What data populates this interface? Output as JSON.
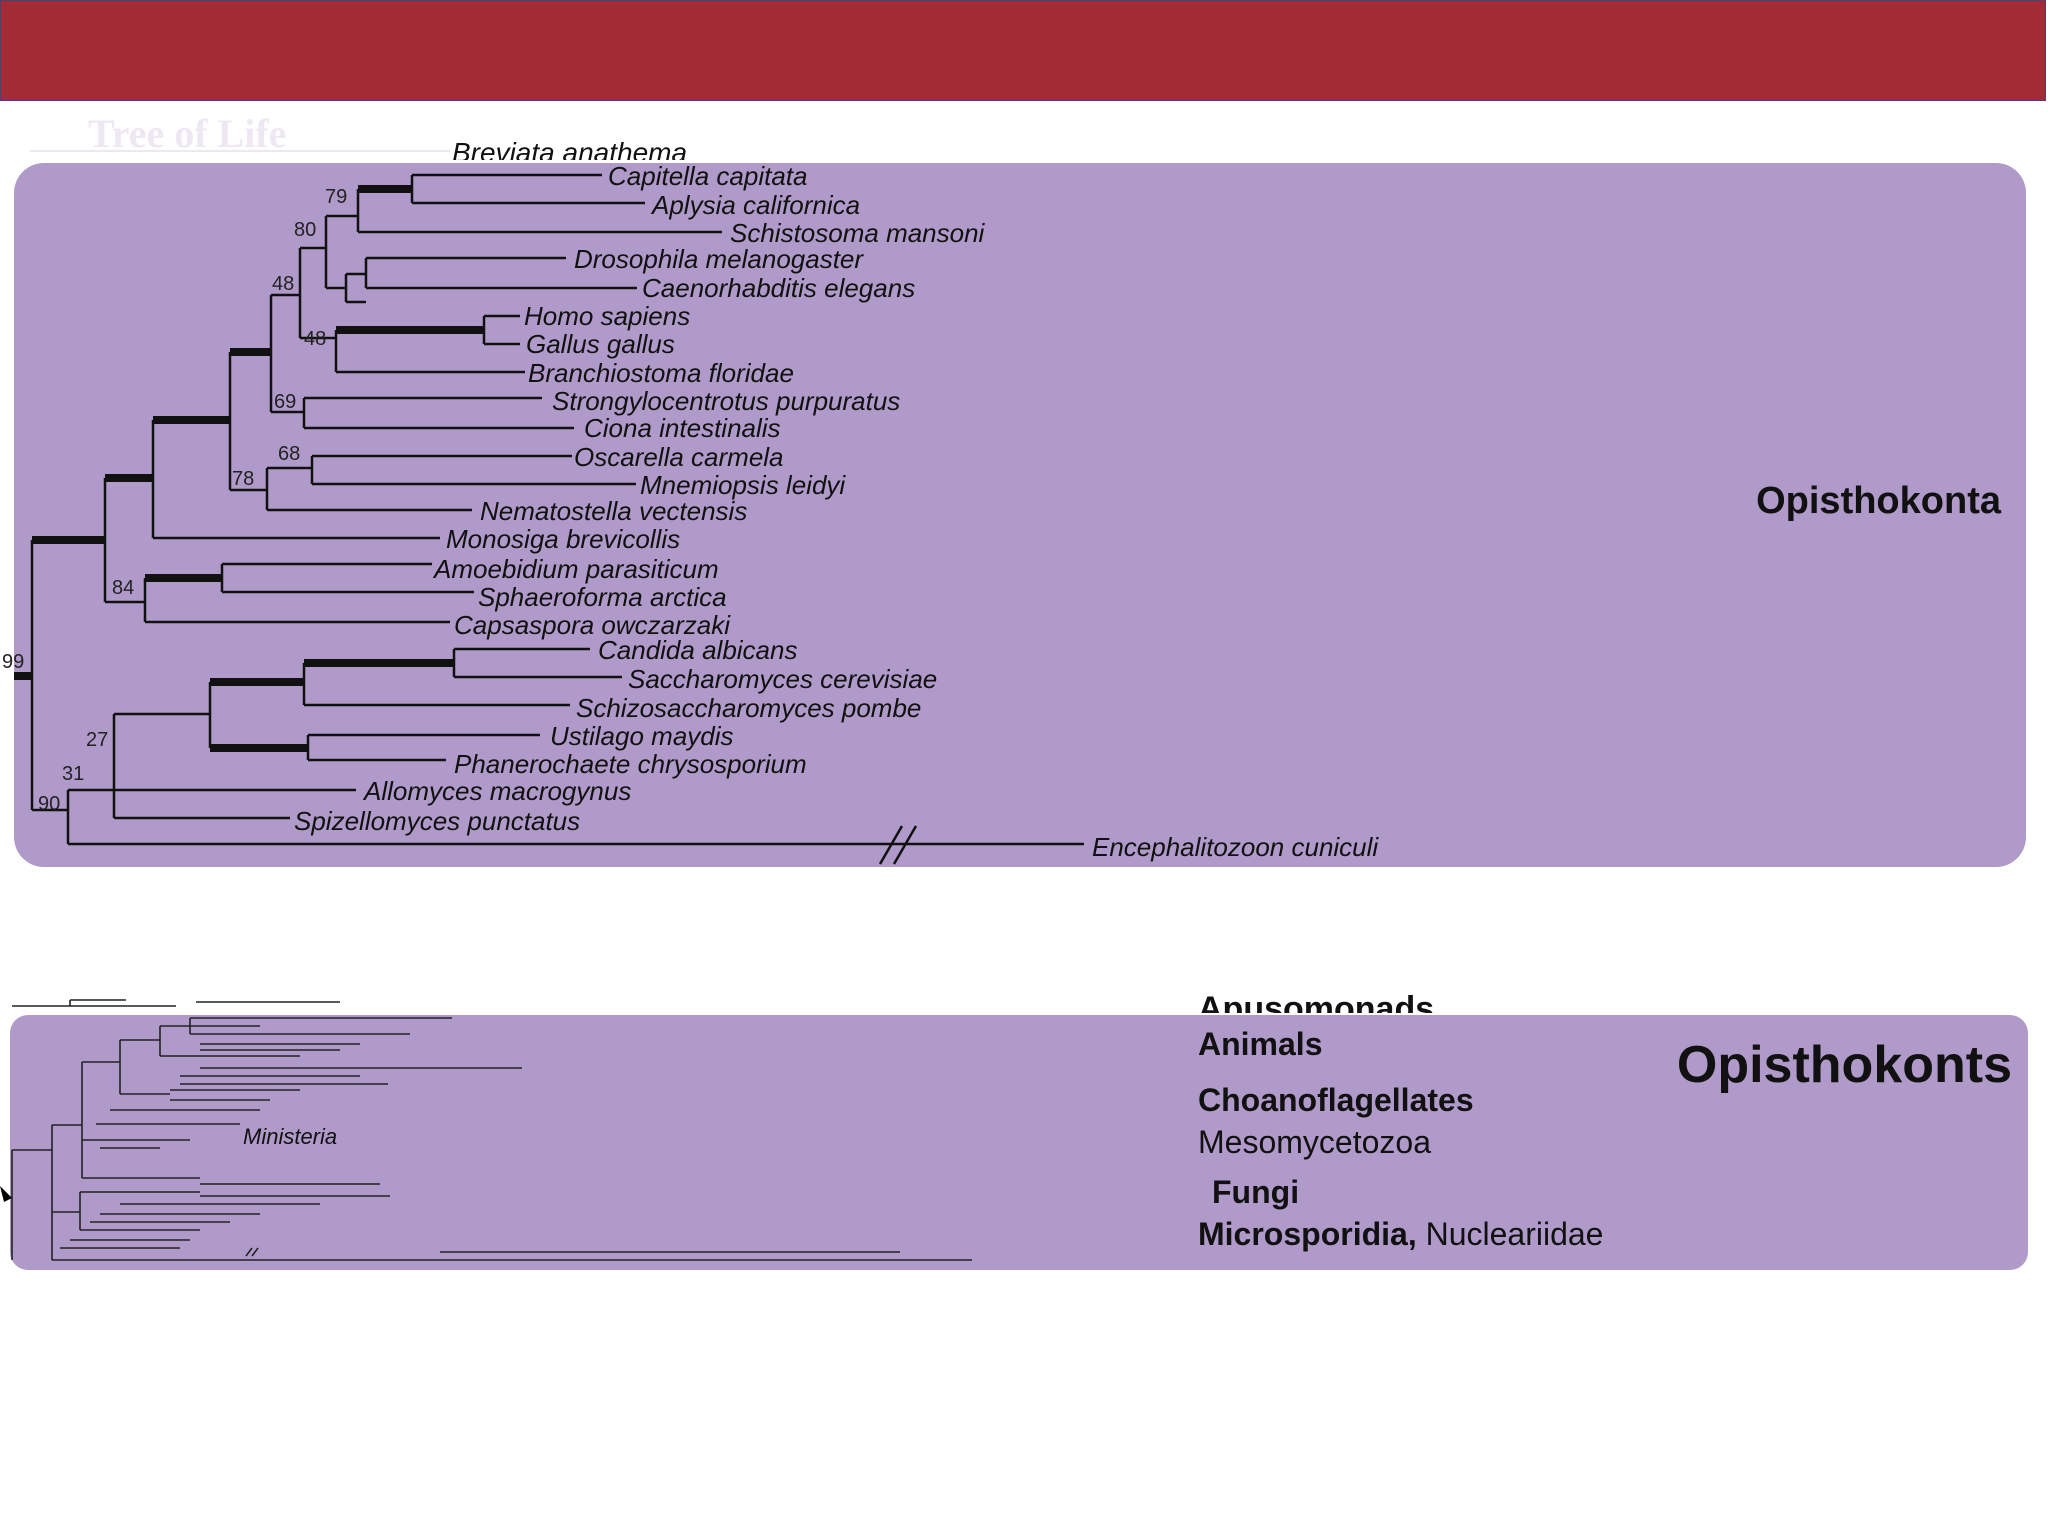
{
  "slide": {
    "faded_title": "Tree of Life",
    "cut_top_taxon": "Breviata anathema",
    "cut_bottom_label": "Apusomonads"
  },
  "top_panel": {
    "group_label": "Opisthokonta",
    "taxa": [
      "Capitella capitata",
      "Aplysia californica",
      "Schistosoma mansoni",
      "Drosophila melanogaster",
      "Caenorhabditis elegans",
      "Homo sapiens",
      "Gallus gallus",
      "Branchiostoma floridae",
      "Strongylocentrotus purpuratus",
      "Ciona intestinalis",
      "Oscarella carmela",
      "Mnemiopsis leidyi",
      "Nematostella vectensis",
      "Monosiga brevicollis",
      "Amoebidium parasiticum",
      "Sphaeroforma arctica",
      "Capsaspora owczarzaki",
      "Candida albicans",
      "Saccharomyces cerevisiae",
      "Schizosaccharomyces pombe",
      "Ustilago maydis",
      "Phanerochaete chrysosporium",
      "Allomyces macrogynus",
      "Spizellomyces punctatus",
      "Encephalitozoon cuniculi"
    ],
    "support_values": [
      "79",
      "80",
      "48",
      "48",
      "69",
      "68",
      "78",
      "84",
      "99",
      "27",
      "31",
      "90"
    ]
  },
  "bottom_panel": {
    "group_label": "Opisthokonts",
    "inner_label": "Ministeria",
    "groups": {
      "animals": "Animals",
      "choanoflagellates": "Choanoflagellates",
      "mesomycetozoa": "Mesomycetozoa",
      "fungi": "Fungi",
      "microsporidia": "Microsporidia,",
      "nucleariidae": "Nucleariidae"
    }
  }
}
